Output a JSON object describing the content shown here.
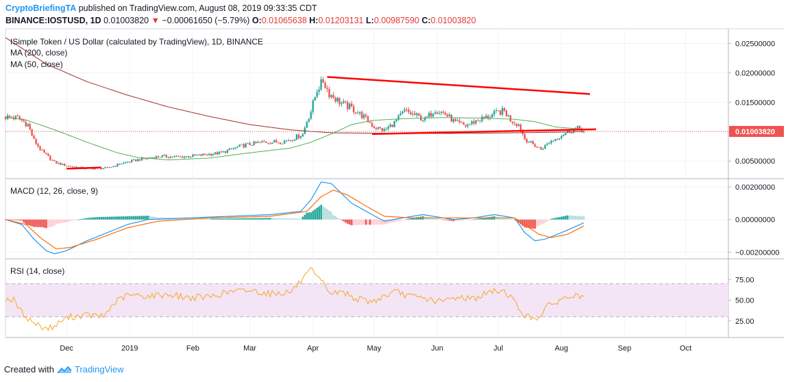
{
  "header": {
    "author": "CryptoBriefingTA",
    "published_text": " published on TradingView.com, August 08, 2019 09:33:35 CDT",
    "symbol": "BINANCE:IOSTUSD, 1D",
    "last": "0.01003820",
    "change": "−0.00061650 (−5.79%)",
    "o_label": "O:",
    "o_value": "0.01065638",
    "h_label": "H:",
    "h_value": "0.01203131",
    "l_label": "L:",
    "l_value": "0.00987590",
    "c_label": "C:",
    "c_value": "0.01003820"
  },
  "footer": {
    "created_with": "Created with",
    "brand": "TradingView"
  },
  "colors": {
    "up": "#26a69a",
    "down": "#ef5350",
    "ma200": "#a52a2a",
    "ma50": "#4caf50",
    "trend": "#ff0000",
    "macd": "#2196f3",
    "signal": "#ff6d00",
    "rsi": "#f5a623",
    "rsi_band": "#f3e5f5",
    "price_tag": "#ef5350"
  },
  "chart_data": [
    {
      "type": "candlestick",
      "title": "ISimple Token / US Dollar (calculated by TradingView), 1D, BINANCE",
      "legend": [
        "MA (200, close)",
        "MA (50, close)"
      ],
      "yticks": [
        "0.02500000",
        "0.02000000",
        "0.01500000",
        "0.01000000",
        "0.00500000"
      ],
      "ytick_values": [
        0.025,
        0.02,
        0.015,
        0.01,
        0.005
      ],
      "ylim": [
        0.002,
        0.0275
      ],
      "xticks": [
        "Dec",
        "2019",
        "Feb",
        "Mar",
        "Apr",
        "May",
        "Jun",
        "Jul",
        "Aug",
        "Sep",
        "Oct"
      ],
      "xtick_days": [
        30,
        61,
        92,
        120,
        151,
        181,
        212,
        242,
        273,
        304,
        334
      ],
      "x_range_days": [
        0,
        355
      ],
      "current_price_label": "0.01003820",
      "current_price": 0.0100382,
      "close_anchors": [
        [
          0,
          0.0125
        ],
        [
          6,
          0.0123
        ],
        [
          11,
          0.0112
        ],
        [
          14,
          0.0085
        ],
        [
          18,
          0.0066
        ],
        [
          24,
          0.0048
        ],
        [
          30,
          0.0042
        ],
        [
          40,
          0.0037
        ],
        [
          50,
          0.0038
        ],
        [
          56,
          0.0045
        ],
        [
          66,
          0.0053
        ],
        [
          76,
          0.0058
        ],
        [
          86,
          0.0057
        ],
        [
          96,
          0.006
        ],
        [
          106,
          0.0064
        ],
        [
          116,
          0.0076
        ],
        [
          126,
          0.0082
        ],
        [
          136,
          0.0083
        ],
        [
          141,
          0.0088
        ],
        [
          146,
          0.0096
        ],
        [
          148,
          0.0118
        ],
        [
          150,
          0.0135
        ],
        [
          153,
          0.0172
        ],
        [
          156,
          0.0186
        ],
        [
          159,
          0.0165
        ],
        [
          165,
          0.0148
        ],
        [
          170,
          0.014
        ],
        [
          176,
          0.0125
        ],
        [
          181,
          0.0108
        ],
        [
          186,
          0.0102
        ],
        [
          191,
          0.0115
        ],
        [
          196,
          0.0135
        ],
        [
          201,
          0.0128
        ],
        [
          206,
          0.012
        ],
        [
          211,
          0.0138
        ],
        [
          216,
          0.013
        ],
        [
          221,
          0.0115
        ],
        [
          226,
          0.011
        ],
        [
          232,
          0.012
        ],
        [
          237,
          0.0125
        ],
        [
          242,
          0.0133
        ],
        [
          245,
          0.0135
        ],
        [
          248,
          0.012
        ],
        [
          252,
          0.0112
        ],
        [
          255,
          0.0088
        ],
        [
          259,
          0.0078
        ],
        [
          263,
          0.007
        ],
        [
          267,
          0.0082
        ],
        [
          272,
          0.0092
        ],
        [
          277,
          0.0102
        ],
        [
          282,
          0.0106
        ],
        [
          284,
          0.0102
        ]
      ],
      "ma200_anchors": [
        [
          0,
          0.026
        ],
        [
          20,
          0.0215
        ],
        [
          40,
          0.0185
        ],
        [
          60,
          0.0162
        ],
        [
          80,
          0.0142
        ],
        [
          100,
          0.0126
        ],
        [
          120,
          0.0112
        ],
        [
          140,
          0.0103
        ],
        [
          160,
          0.0098
        ],
        [
          190,
          0.0097
        ],
        [
          220,
          0.0097
        ],
        [
          250,
          0.0098
        ],
        [
          270,
          0.0099
        ],
        [
          284,
          0.01
        ]
      ],
      "ma50_anchors": [
        [
          0,
          0.0125
        ],
        [
          10,
          0.012
        ],
        [
          25,
          0.0102
        ],
        [
          40,
          0.0082
        ],
        [
          55,
          0.0064
        ],
        [
          65,
          0.0056
        ],
        [
          80,
          0.0052
        ],
        [
          100,
          0.0055
        ],
        [
          120,
          0.0064
        ],
        [
          140,
          0.0072
        ],
        [
          150,
          0.0082
        ],
        [
          160,
          0.0096
        ],
        [
          170,
          0.0112
        ],
        [
          180,
          0.0119
        ],
        [
          195,
          0.0122
        ],
        [
          215,
          0.0124
        ],
        [
          235,
          0.0123
        ],
        [
          250,
          0.0121
        ],
        [
          260,
          0.0117
        ],
        [
          270,
          0.0108
        ],
        [
          284,
          0.0104
        ]
      ],
      "trendlines": [
        [
          [
            158,
            0.0193
          ],
          [
            287,
            0.0164
          ]
        ],
        [
          [
            180,
            0.0096
          ],
          [
            290,
            0.0104
          ]
        ],
        [
          [
            30,
            0.0037
          ],
          [
            47,
            0.0039
          ]
        ]
      ]
    },
    {
      "type": "line",
      "title": "MACD (12, 26, close, 9)",
      "yticks": [
        "0.00200000",
        "0.00000000",
        "−0.00200000"
      ],
      "ytick_values": [
        0.002,
        0,
        -0.002
      ],
      "ylim": [
        -0.0024,
        0.0025
      ],
      "macd_anchors": [
        [
          0,
          0
        ],
        [
          8,
          -0.0003
        ],
        [
          14,
          -0.0012
        ],
        [
          20,
          -0.0019
        ],
        [
          24,
          -0.0021
        ],
        [
          30,
          -0.0019
        ],
        [
          40,
          -0.0013
        ],
        [
          50,
          -0.0008
        ],
        [
          60,
          -0.0003
        ],
        [
          70,
          0
        ],
        [
          90,
          0.0001
        ],
        [
          110,
          0.0002
        ],
        [
          130,
          0.0003
        ],
        [
          145,
          0.0005
        ],
        [
          150,
          0.0012
        ],
        [
          155,
          0.0023
        ],
        [
          160,
          0.0022
        ],
        [
          165,
          0.0016
        ],
        [
          170,
          0.001
        ],
        [
          180,
          0.0003
        ],
        [
          186,
          -0.0001
        ],
        [
          195,
          0.0001
        ],
        [
          205,
          0.0003
        ],
        [
          220,
          0
        ],
        [
          230,
          0.0001
        ],
        [
          240,
          0.0003
        ],
        [
          250,
          0.0001
        ],
        [
          255,
          -0.0008
        ],
        [
          260,
          -0.0013
        ],
        [
          265,
          -0.0012
        ],
        [
          275,
          -0.0007
        ],
        [
          284,
          -0.0002
        ]
      ],
      "signal_anchors": [
        [
          0,
          0
        ],
        [
          10,
          -0.0003
        ],
        [
          18,
          -0.0012
        ],
        [
          25,
          -0.0018
        ],
        [
          32,
          -0.0017
        ],
        [
          45,
          -0.0012
        ],
        [
          60,
          -0.0005
        ],
        [
          75,
          -0.0001
        ],
        [
          100,
          0.0001
        ],
        [
          130,
          0.0002
        ],
        [
          148,
          0.0005
        ],
        [
          155,
          0.0014
        ],
        [
          161,
          0.0018
        ],
        [
          168,
          0.0015
        ],
        [
          176,
          0.0009
        ],
        [
          186,
          0.0002
        ],
        [
          200,
          0.0001
        ],
        [
          215,
          0.0001
        ],
        [
          235,
          0.0001
        ],
        [
          250,
          0.0001
        ],
        [
          256,
          -0.0004
        ],
        [
          262,
          -0.0009
        ],
        [
          268,
          -0.0011
        ],
        [
          276,
          -0.0009
        ],
        [
          284,
          -0.0004
        ]
      ]
    },
    {
      "type": "line",
      "title": "RSI (14, close)",
      "yticks": [
        "75.00",
        "50.00",
        "25.00"
      ],
      "ytick_values": [
        75,
        50,
        25
      ],
      "ylim": [
        5,
        100
      ],
      "band": [
        30,
        70
      ],
      "rsi_anchors": [
        [
          0,
          52
        ],
        [
          4,
          50
        ],
        [
          8,
          35
        ],
        [
          12,
          26
        ],
        [
          16,
          20
        ],
        [
          20,
          16
        ],
        [
          24,
          18
        ],
        [
          28,
          26
        ],
        [
          32,
          30
        ],
        [
          40,
          32
        ],
        [
          48,
          30
        ],
        [
          54,
          48
        ],
        [
          60,
          56
        ],
        [
          70,
          55
        ],
        [
          80,
          57
        ],
        [
          90,
          53
        ],
        [
          100,
          54
        ],
        [
          110,
          60
        ],
        [
          120,
          62
        ],
        [
          130,
          58
        ],
        [
          140,
          60
        ],
        [
          146,
          75
        ],
        [
          150,
          86
        ],
        [
          152,
          80
        ],
        [
          156,
          70
        ],
        [
          160,
          58
        ],
        [
          166,
          60
        ],
        [
          172,
          52
        ],
        [
          180,
          48
        ],
        [
          186,
          55
        ],
        [
          192,
          60
        ],
        [
          198,
          55
        ],
        [
          206,
          52
        ],
        [
          214,
          48
        ],
        [
          222,
          54
        ],
        [
          230,
          52
        ],
        [
          238,
          60
        ],
        [
          244,
          62
        ],
        [
          248,
          55
        ],
        [
          252,
          40
        ],
        [
          255,
          32
        ],
        [
          258,
          28
        ],
        [
          262,
          30
        ],
        [
          266,
          42
        ],
        [
          272,
          50
        ],
        [
          278,
          55
        ],
        [
          284,
          55
        ]
      ]
    }
  ]
}
